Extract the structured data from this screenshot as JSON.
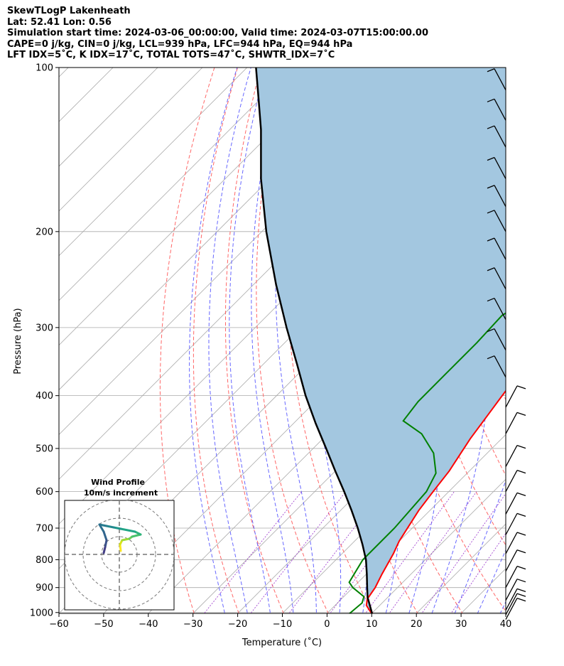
{
  "header": {
    "line1": "SkewTLogP Lakenheath",
    "line2": "Lat: 52.41   Lon: 0.56",
    "line3": "Simulation start time: 2024-03-06_00:00:00, Valid time: 2024-03-07T15:00:00.00",
    "line4": "CAPE=0 j/kg, CIN=0 j/kg, LCL=939 hPa, LFC=944 hPa, EQ=944 hPa",
    "line5": "LFT IDX=5˚C, K IDX=17˚C, TOTAL TOTS=47˚C, SHWTR_IDX=7˚C"
  },
  "chart_data": {
    "type": "line",
    "subtype": "skew-T log-P",
    "xlabel": "Temperature (˚C)",
    "ylabel": "Pressure (hPa)",
    "xlim": [
      -60,
      40
    ],
    "ylim": [
      1050,
      100
    ],
    "y_scale": "log",
    "grid": true,
    "xticks": [
      -60,
      -50,
      -40,
      -30,
      -20,
      -10,
      0,
      10,
      20,
      30,
      40
    ],
    "yticks": [
      100,
      200,
      300,
      400,
      500,
      600,
      700,
      800,
      900,
      1000
    ],
    "colors": {
      "temperature": "#ff0000",
      "dewpoint": "#008000",
      "parcel": "#000000",
      "shading": "#a3c7e0",
      "dry_adiabats": "#ff6666",
      "moist_adiabats": "#6666ff",
      "mixing_ratio": "#9933cc",
      "isotherms": "#aaaaaa"
    },
    "series": [
      {
        "kind": "temperature",
        "points": [
          [
            10.5,
            1010
          ],
          [
            7,
            970
          ],
          [
            5.8,
            945
          ],
          [
            5,
            900
          ],
          [
            3.5,
            850
          ],
          [
            1.5,
            780
          ],
          [
            0,
            740
          ],
          [
            -2.5,
            650
          ],
          [
            -3.5,
            600
          ],
          [
            -4.5,
            550
          ],
          [
            -7,
            480
          ],
          [
            -8.5,
            430
          ],
          [
            -9.5,
            400
          ],
          [
            -10.5,
            370
          ],
          [
            -12,
            340
          ],
          [
            -13.5,
            310
          ],
          [
            -15,
            290
          ],
          [
            -15,
            270
          ],
          [
            -14,
            245
          ],
          [
            -13,
            225
          ],
          [
            -11.5,
            205
          ],
          [
            -9,
            185
          ],
          [
            -5,
            165
          ],
          [
            -1,
            150
          ],
          [
            2,
            135
          ],
          [
            3.5,
            125
          ],
          [
            5,
            110
          ],
          [
            6,
            100
          ]
        ]
      },
      {
        "kind": "dewpoint",
        "points": [
          [
            5,
            1010
          ],
          [
            5.5,
            960
          ],
          [
            4.5,
            935
          ],
          [
            0,
            900
          ],
          [
            -2,
            880
          ],
          [
            -4,
            800
          ],
          [
            -4,
            700
          ],
          [
            -5,
            600
          ],
          [
            -7,
            555
          ],
          [
            -12,
            510
          ],
          [
            -19,
            470
          ],
          [
            -26,
            445
          ],
          [
            -27,
            410
          ],
          [
            -27,
            365
          ],
          [
            -27,
            320
          ],
          [
            -27.5,
            285
          ],
          [
            -25,
            265
          ],
          [
            -21,
            245
          ],
          [
            -17,
            215
          ],
          [
            -15,
            200
          ],
          [
            -16,
            185
          ],
          [
            -17,
            170
          ],
          [
            -14,
            155
          ],
          [
            -10,
            140
          ],
          [
            -6,
            125
          ],
          [
            -4,
            110
          ],
          [
            -3,
            100
          ]
        ]
      },
      {
        "kind": "parcel",
        "points": [
          [
            10.5,
            1010
          ],
          [
            6,
            945
          ],
          [
            5.6,
            940
          ],
          [
            3.2,
            900
          ],
          [
            0.1,
            850
          ],
          [
            -3.3,
            800
          ],
          [
            -7.5,
            750
          ],
          [
            -12.2,
            700
          ],
          [
            -17.5,
            650
          ],
          [
            -23.4,
            600
          ],
          [
            -30,
            550
          ],
          [
            -37.1,
            500
          ],
          [
            -45,
            450
          ],
          [
            -53.5,
            400
          ],
          [
            -62.5,
            350
          ],
          [
            -73,
            300
          ],
          [
            -85,
            250
          ],
          [
            -99,
            200
          ],
          [
            -112,
            160
          ],
          [
            -123,
            130
          ],
          [
            -130,
            115
          ],
          [
            -138,
            100
          ]
        ]
      }
    ],
    "wind_profile": {
      "title": "Wind Profile",
      "subtitle": "10m/s increment"
    }
  }
}
